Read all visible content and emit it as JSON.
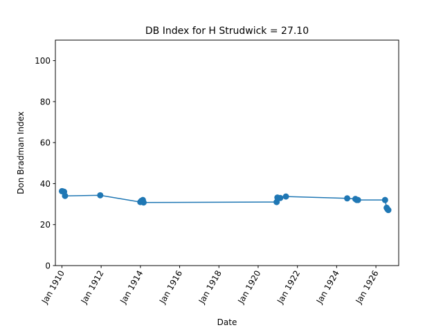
{
  "chart_data": {
    "type": "line",
    "title": "DB Index for H Strudwick = 27.10",
    "xlabel": "Date",
    "ylabel": "Don Bradman Index",
    "ylim": [
      0,
      110
    ],
    "xlim": [
      "1909-09-01",
      "1927-03-01"
    ],
    "grid": false,
    "y_ticks": [
      0,
      20,
      40,
      60,
      80,
      100
    ],
    "x_ticks": [
      {
        "date": "1910-01-01",
        "label": "Jan 1910"
      },
      {
        "date": "1912-01-01",
        "label": "Jan 1912"
      },
      {
        "date": "1914-01-01",
        "label": "Jan 1914"
      },
      {
        "date": "1916-01-01",
        "label": "Jan 1916"
      },
      {
        "date": "1918-01-01",
        "label": "Jan 1918"
      },
      {
        "date": "1920-01-01",
        "label": "Jan 1920"
      },
      {
        "date": "1922-01-01",
        "label": "Jan 1922"
      },
      {
        "date": "1924-01-01",
        "label": "Jan 1924"
      },
      {
        "date": "1926-01-01",
        "label": "Jan 1926"
      }
    ],
    "color": "#1f77b4",
    "series": [
      {
        "points": [
          {
            "x": "1910-01-01",
            "y": 36.3
          },
          {
            "x": "1910-01-20",
            "y": 36.2
          },
          {
            "x": "1910-02-10",
            "y": 36.0
          },
          {
            "x": "1910-02-28",
            "y": 34.0
          },
          {
            "x": "1911-12-15",
            "y": 34.3
          },
          {
            "x": "1913-12-30",
            "y": 31.0
          },
          {
            "x": "1914-01-20",
            "y": 31.6
          },
          {
            "x": "1914-02-15",
            "y": 32.0
          },
          {
            "x": "1914-03-01",
            "y": 30.8
          },
          {
            "x": "1920-12-10",
            "y": 31.0
          },
          {
            "x": "1920-12-25",
            "y": 33.2
          },
          {
            "x": "1921-02-15",
            "y": 33.0
          },
          {
            "x": "1921-06-01",
            "y": 33.7
          },
          {
            "x": "1924-07-15",
            "y": 32.8
          },
          {
            "x": "1924-12-15",
            "y": 32.5
          },
          {
            "x": "1925-01-10",
            "y": 32.0
          },
          {
            "x": "1925-02-01",
            "y": 32.0
          },
          {
            "x": "1926-06-20",
            "y": 32.0
          },
          {
            "x": "1926-07-20",
            "y": 28.2
          },
          {
            "x": "1926-08-05",
            "y": 27.5
          },
          {
            "x": "1926-08-20",
            "y": 27.1
          }
        ]
      }
    ]
  }
}
